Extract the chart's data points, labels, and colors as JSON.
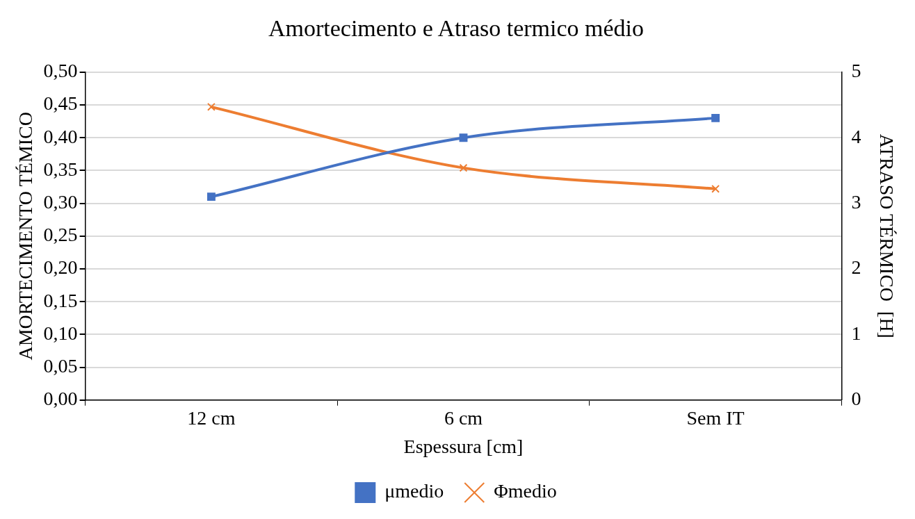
{
  "chart_data": {
    "type": "line",
    "title": "Amortecimento e Atraso termico médio",
    "xlabel": "Espessura [cm]",
    "ylabel": "AMORTECIMENTO TÉMICO",
    "y2label": "ATRASO TÉRMICO  [H]",
    "categories": [
      "12 cm",
      "6 cm",
      "Sem IT"
    ],
    "series": [
      {
        "name": "μmedio",
        "color": "#4472c4",
        "values": [
          0.31,
          0.4,
          0.43
        ],
        "marker": "square"
      },
      {
        "name": "Φmedio",
        "color": "#ed7d31",
        "values": [
          4.47,
          3.54,
          3.22
        ],
        "marker": "cross",
        "axis": "y2"
      }
    ],
    "ylim": [
      0,
      0.5
    ],
    "yticks": [
      {
        "value": 0,
        "label": "0,00"
      },
      {
        "value": 0.05,
        "label": "0,05"
      },
      {
        "value": 0.1,
        "label": "0,10"
      },
      {
        "value": 0.15,
        "label": "0,15"
      },
      {
        "value": 0.2,
        "label": "0,20"
      },
      {
        "value": 0.25,
        "label": "0,25"
      },
      {
        "value": 0.3,
        "label": "0,30"
      },
      {
        "value": 0.35,
        "label": "0,35"
      },
      {
        "value": 0.4,
        "label": "0,40"
      },
      {
        "value": 0.45,
        "label": "0,45"
      },
      {
        "value": 0.5,
        "label": "0,50"
      }
    ],
    "y2lim": [
      0,
      5
    ],
    "y2ticks": [
      0,
      1,
      2,
      3,
      4,
      5
    ],
    "grid": "y",
    "legend": "bottom",
    "line_style": "solid"
  }
}
